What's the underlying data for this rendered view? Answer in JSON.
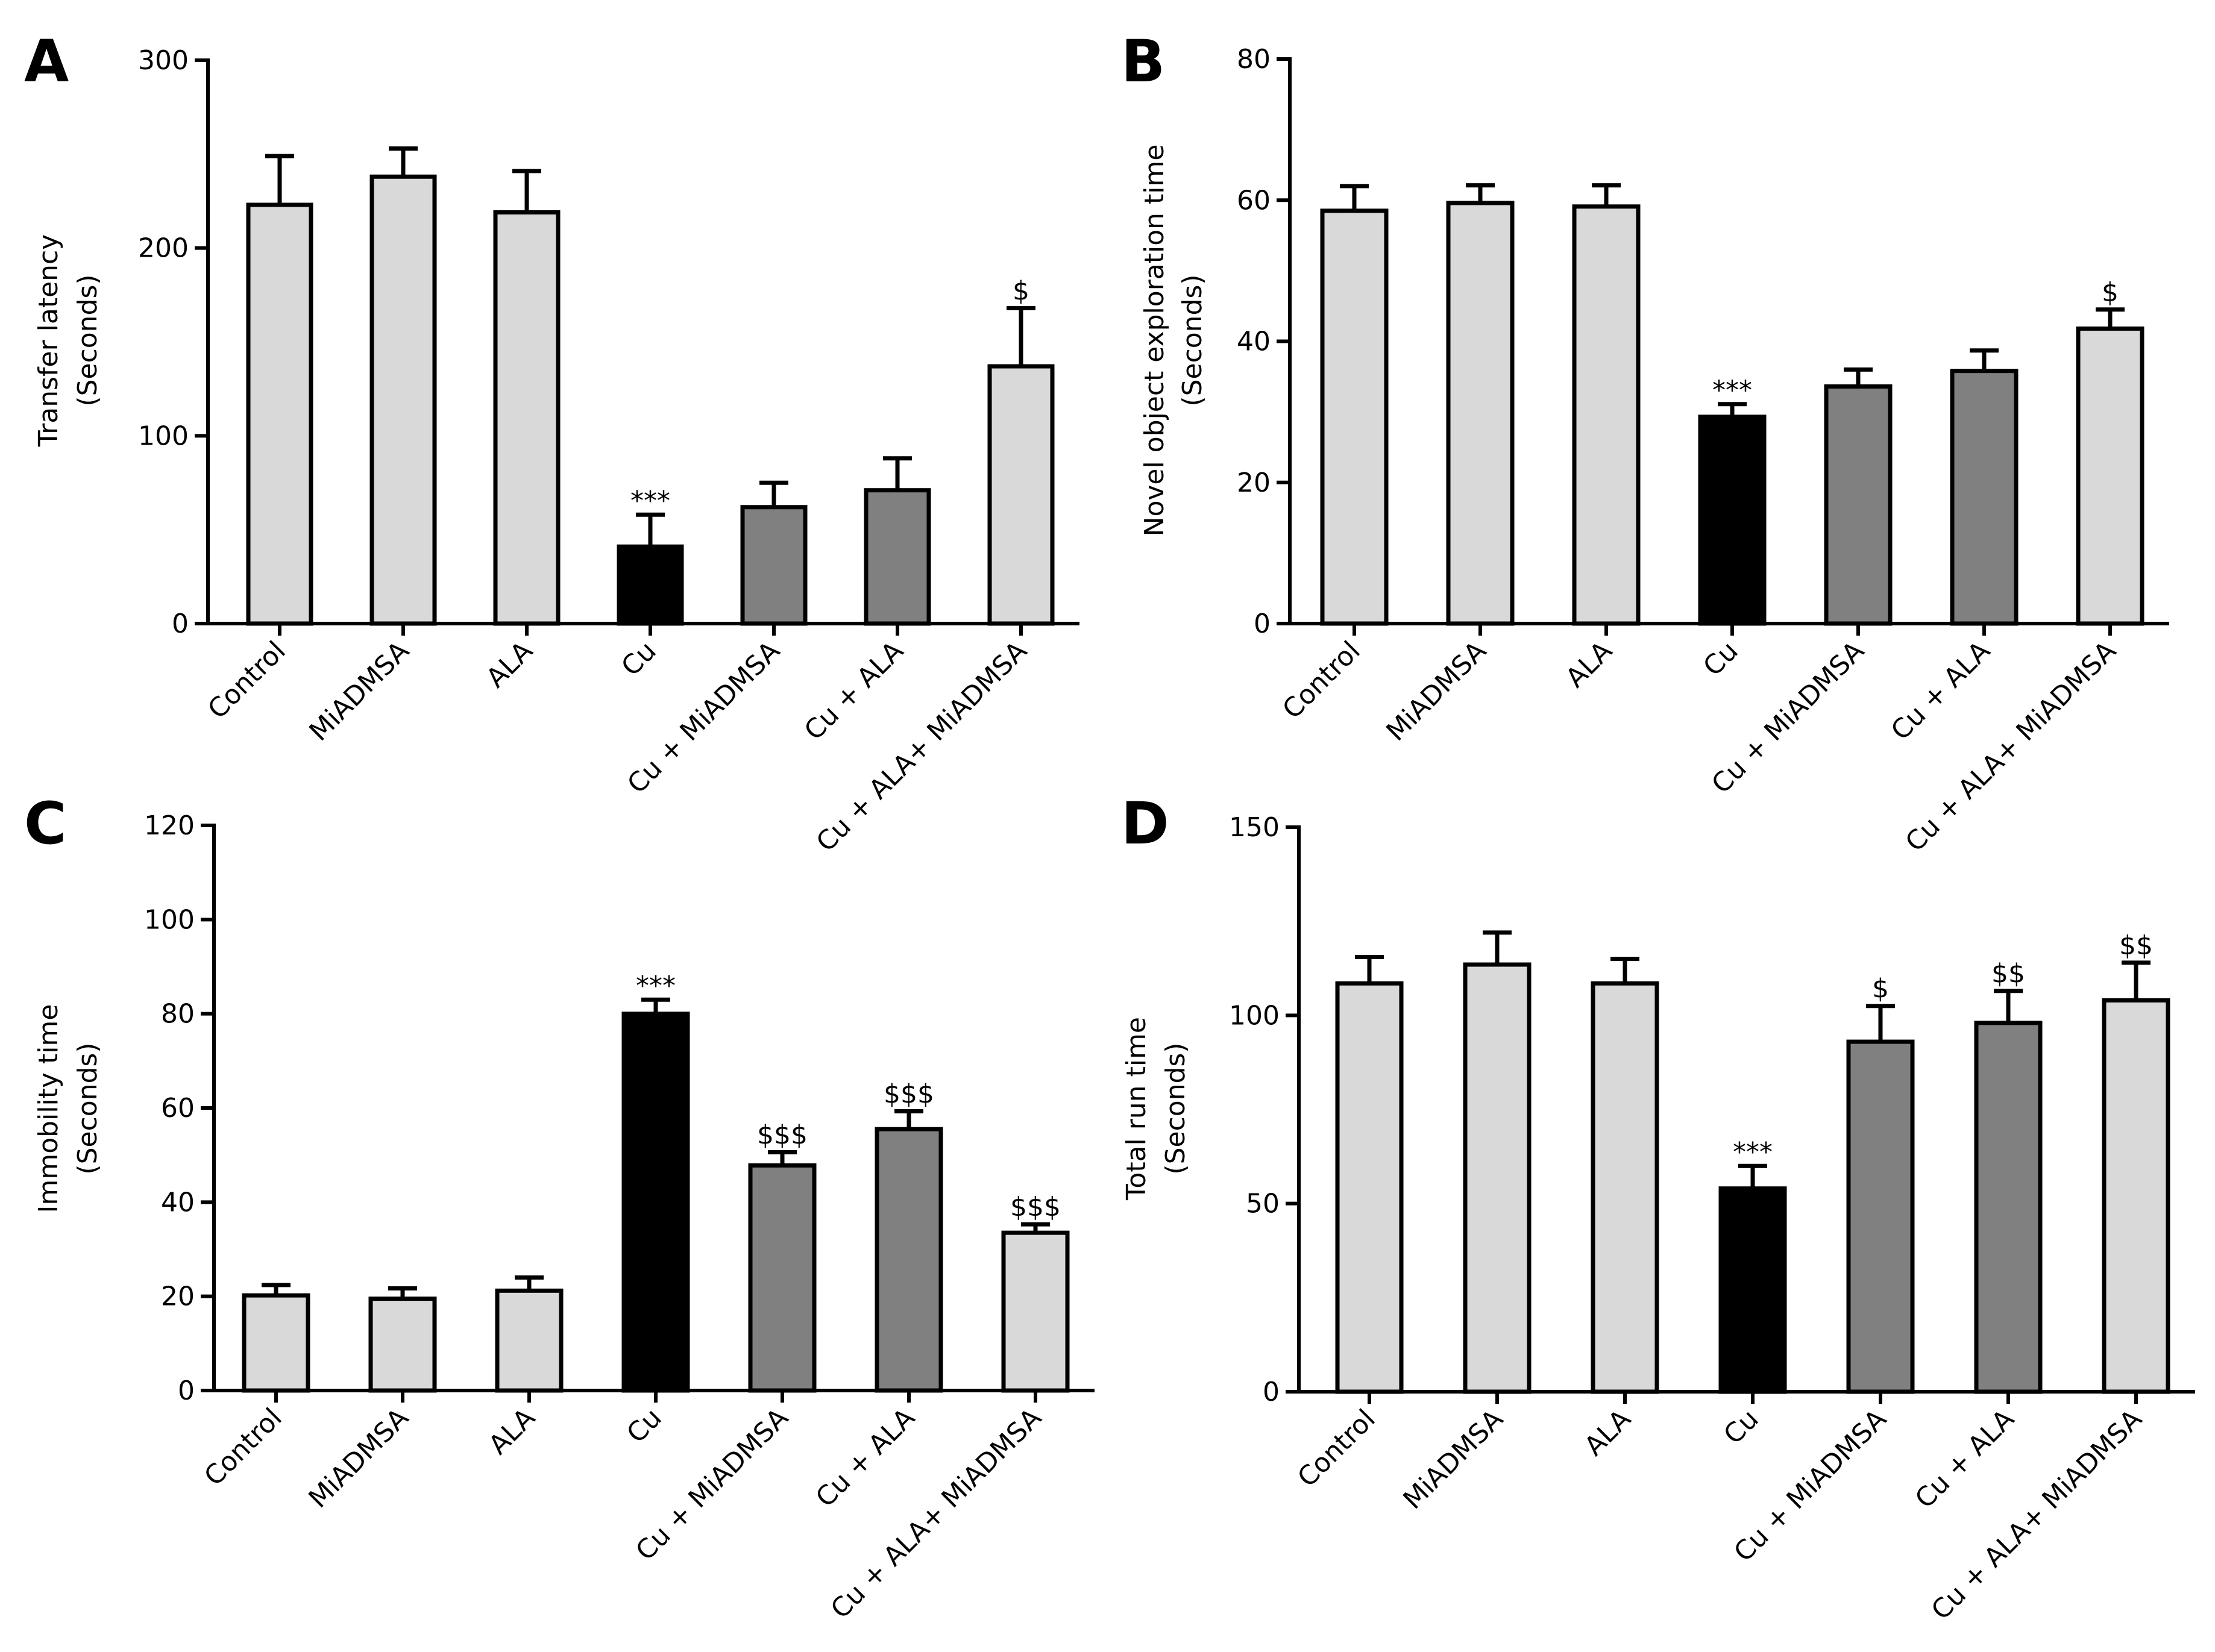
{
  "colors": {
    "light": "#d9d9d9",
    "mid": "#808080",
    "dark": "#000000"
  },
  "chart_data": [
    {
      "type": "bar",
      "panel": "A",
      "title": "",
      "xlabel": "",
      "ylabel": [
        "Transfer latency",
        "(Seconds)"
      ],
      "ylim": [
        0,
        300
      ],
      "yticks": [
        0,
        100,
        200,
        300
      ],
      "categories": [
        "Control",
        "MiADMSA",
        "ALA",
        "Cu",
        "Cu + MiADMSA",
        "Cu + ALA",
        "Cu + ALA+ MiADMSA"
      ],
      "values": [
        223,
        238,
        219,
        41,
        62,
        71,
        137
      ],
      "errors": [
        26,
        15,
        22,
        17,
        13,
        17,
        31
      ],
      "fills": [
        "light",
        "light",
        "light",
        "dark",
        "mid",
        "mid",
        "light"
      ],
      "annotations": [
        "",
        "",
        "",
        "***",
        "",
        "",
        "$"
      ]
    },
    {
      "type": "bar",
      "panel": "B",
      "title": "",
      "xlabel": "",
      "ylabel": [
        "Novel object exploration time",
        "(Seconds)"
      ],
      "ylim": [
        0,
        80
      ],
      "yticks": [
        0,
        20,
        40,
        60,
        80
      ],
      "categories": [
        "Control",
        "MiADMSA",
        "ALA",
        "Cu",
        "Cu + MiADMSA",
        "Cu + ALA",
        "Cu + ALA+ MiADMSA"
      ],
      "values": [
        58.5,
        59.6,
        59.1,
        29.3,
        33.6,
        35.8,
        41.8
      ],
      "errors": [
        3.5,
        2.5,
        3.0,
        1.8,
        2.4,
        2.9,
        2.7
      ],
      "fills": [
        "light",
        "light",
        "light",
        "dark",
        "mid",
        "mid",
        "light"
      ],
      "annotations": [
        "",
        "",
        "",
        "***",
        "",
        "",
        "$"
      ]
    },
    {
      "type": "bar",
      "panel": "C",
      "title": "",
      "xlabel": "",
      "ylabel": [
        "Immobility time",
        "(Seconds)"
      ],
      "ylim": [
        0,
        120
      ],
      "yticks": [
        0,
        20,
        40,
        60,
        80,
        100,
        120
      ],
      "categories": [
        "Control",
        "MiADMSA",
        "ALA",
        "Cu",
        "Cu + MiADMSA",
        "Cu + ALA",
        "Cu + ALA+ MiADMSA"
      ],
      "values": [
        20.2,
        19.5,
        21.2,
        80,
        47.8,
        55.5,
        33.5
      ],
      "errors": [
        2.2,
        2.2,
        2.8,
        3.0,
        2.8,
        3.8,
        1.8
      ],
      "fills": [
        "light",
        "light",
        "light",
        "dark",
        "mid",
        "mid",
        "light"
      ],
      "annotations": [
        "",
        "",
        "",
        "***",
        "$$$",
        "$$$",
        "$$$"
      ]
    },
    {
      "type": "bar",
      "panel": "D",
      "title": "",
      "xlabel": "",
      "ylabel": [
        "Total run time",
        "(Seconds)"
      ],
      "ylim": [
        0,
        150
      ],
      "yticks": [
        0,
        50,
        100,
        150
      ],
      "categories": [
        "Control",
        "MiADMSA",
        "ALA",
        "Cu",
        "Cu + MiADMSA",
        "Cu + ALA",
        "Cu + ALA+ MiADMSA"
      ],
      "values": [
        108.5,
        113.5,
        108.5,
        54,
        93,
        98,
        104
      ],
      "errors": [
        7,
        8.5,
        6.5,
        6,
        9.5,
        8.5,
        10
      ],
      "fills": [
        "light",
        "light",
        "light",
        "dark",
        "mid",
        "mid",
        "light"
      ],
      "annotations": [
        "",
        "",
        "",
        "***",
        "$",
        "$$",
        "$$"
      ]
    }
  ]
}
